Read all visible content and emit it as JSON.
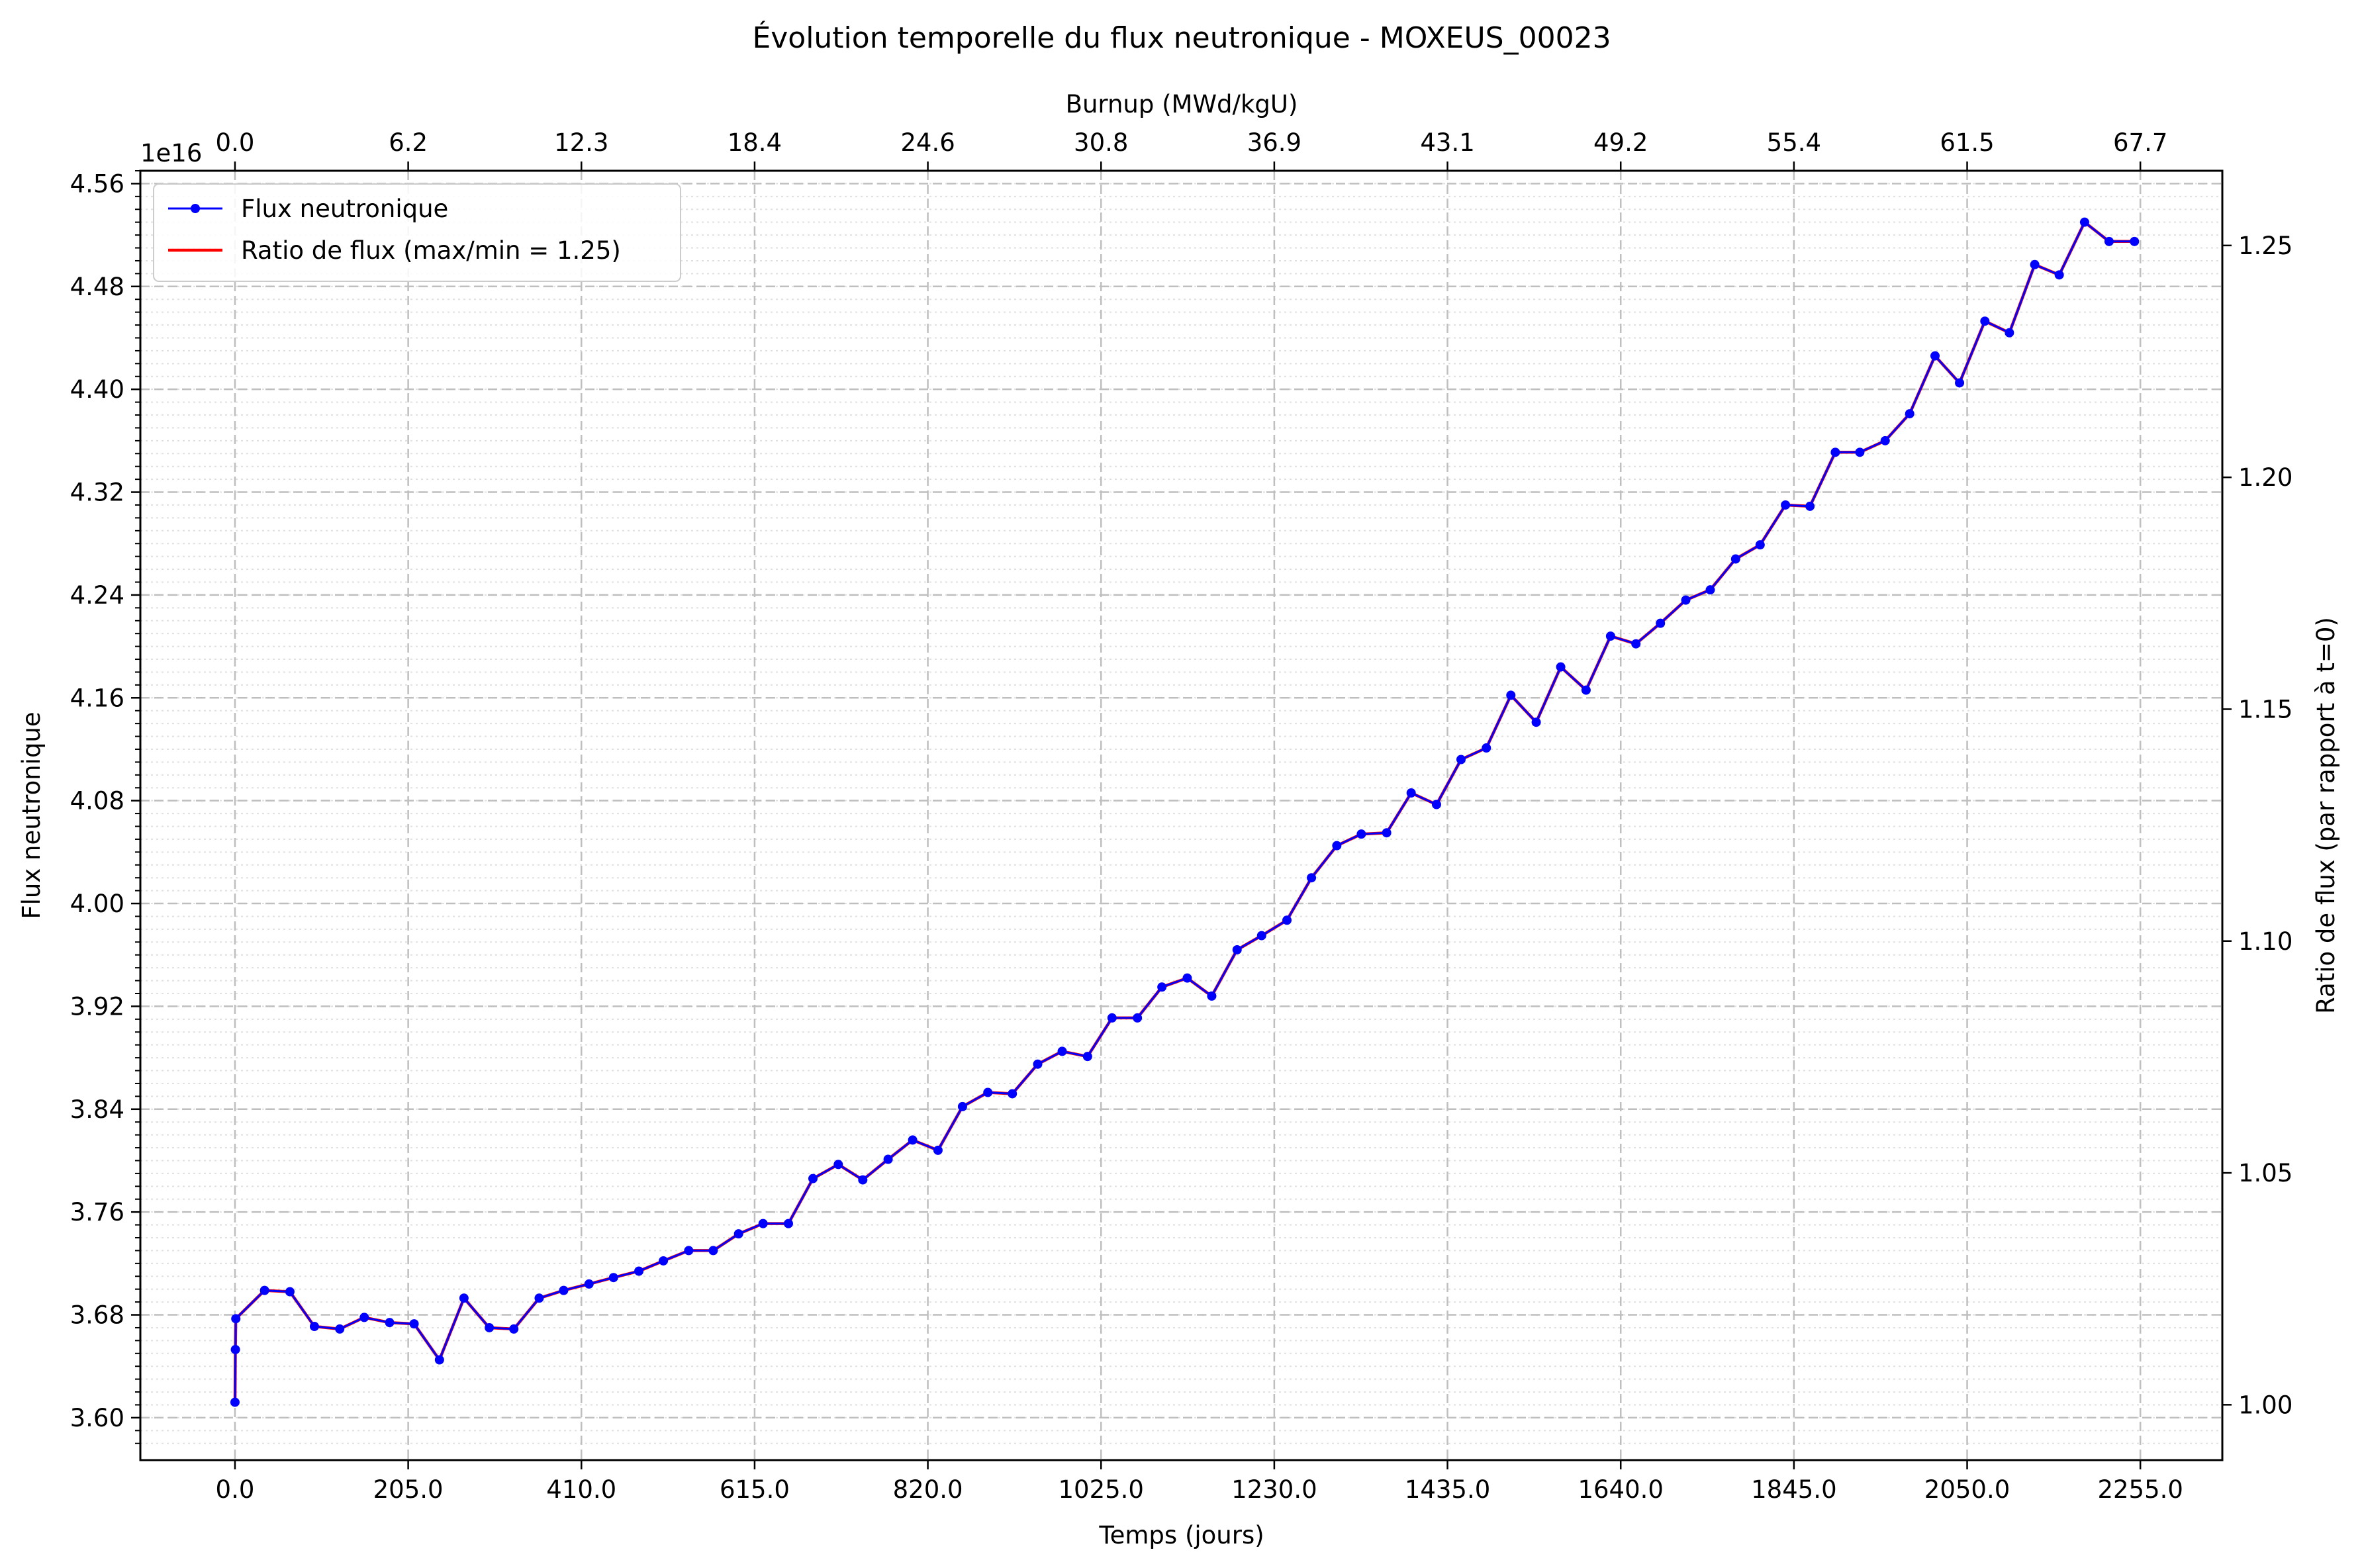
{
  "chart_data": {
    "type": "line",
    "title": "Évolution temporelle du flux neutronique - MOXEUS_00023",
    "xlabel": "Temps (jours)",
    "ylabel": "Flux neutronique",
    "y2label": "Ratio de flux (par rapport à t=0)",
    "top_xlabel": "Burnup (MWd/kgU)",
    "y_offset_text": "1e16",
    "xlim": [
      -112,
      2352
    ],
    "ylim": [
      3.567,
      4.57
    ],
    "y2lim": [
      0.98806,
      1.26611
    ],
    "x_ticks": [
      0,
      205,
      410,
      615,
      820,
      1025,
      1230,
      1435,
      1640,
      1845,
      2050,
      2255
    ],
    "x_tick_labels": [
      "0.0",
      "205.0",
      "410.0",
      "615.0",
      "820.0",
      "1025.0",
      "1230.0",
      "1435.0",
      "1640.0",
      "1845.0",
      "2050.0",
      "2255.0"
    ],
    "top_tick_labels": [
      "0.0",
      "6.2",
      "12.3",
      "18.4",
      "24.6",
      "30.8",
      "36.9",
      "43.1",
      "49.2",
      "55.4",
      "61.5",
      "67.7"
    ],
    "y_ticks": [
      3.6,
      3.68,
      3.76,
      3.84,
      3.92,
      4.0,
      4.08,
      4.16,
      4.24,
      4.32,
      4.4,
      4.48,
      4.56
    ],
    "y_tick_labels": [
      "3.60",
      "3.68",
      "3.76",
      "3.84",
      "3.92",
      "4.00",
      "4.08",
      "4.16",
      "4.24",
      "4.32",
      "4.40",
      "4.48",
      "4.56"
    ],
    "y2_ticks": [
      1.0,
      1.05,
      1.1,
      1.15,
      1.2,
      1.25
    ],
    "y2_tick_labels": [
      "1.00",
      "1.05",
      "1.10",
      "1.15",
      "1.20",
      "1.25"
    ],
    "grid": true,
    "legend_position": "top-left",
    "series": [
      {
        "name": "Flux neutronique",
        "color": "#0000ff",
        "marker": "circle",
        "x": [
          0,
          0.5,
          1,
          35,
          65,
          94,
          124,
          153,
          183,
          212,
          242,
          271,
          301,
          330,
          360,
          389,
          419,
          448,
          478,
          507,
          537,
          566,
          596,
          625,
          655,
          684,
          714,
          743,
          773,
          802,
          832,
          861,
          891,
          920,
          950,
          979,
          1009,
          1038,
          1068,
          1097,
          1127,
          1156,
          1186,
          1215,
          1245,
          1274,
          1304,
          1333,
          1363,
          1392,
          1422,
          1451,
          1481,
          1510,
          1540,
          1569,
          1599,
          1628,
          1658,
          1687,
          1717,
          1746,
          1776,
          1805,
          1835,
          1864,
          1894,
          1923,
          1953,
          1982,
          2012,
          2041,
          2071,
          2100,
          2130,
          2159,
          2189,
          2218,
          2248
        ],
        "y": [
          3.612,
          3.653,
          3.677,
          3.699,
          3.698,
          3.671,
          3.669,
          3.678,
          3.674,
          3.673,
          3.645,
          3.693,
          3.67,
          3.669,
          3.693,
          3.699,
          3.704,
          3.709,
          3.714,
          3.722,
          3.73,
          3.73,
          3.743,
          3.751,
          3.751,
          3.786,
          3.797,
          3.785,
          3.801,
          3.816,
          3.808,
          3.842,
          3.853,
          3.852,
          3.875,
          3.885,
          3.881,
          3.911,
          3.911,
          3.935,
          3.942,
          3.928,
          3.964,
          3.975,
          3.987,
          4.02,
          4.045,
          4.054,
          4.055,
          4.086,
          4.077,
          4.112,
          4.121,
          4.162,
          4.141,
          4.184,
          4.166,
          4.208,
          4.202,
          4.218,
          4.236,
          4.244,
          4.268,
          4.279,
          4.31,
          4.309,
          4.351,
          4.351,
          4.36,
          4.381,
          4.426,
          4.405,
          4.453,
          4.444,
          4.497,
          4.489,
          4.53,
          4.515,
          4.515
        ]
      },
      {
        "name": "Ratio de flux (max/min = 1.25)",
        "color": "#ff0000",
        "marker": "none"
      }
    ]
  }
}
